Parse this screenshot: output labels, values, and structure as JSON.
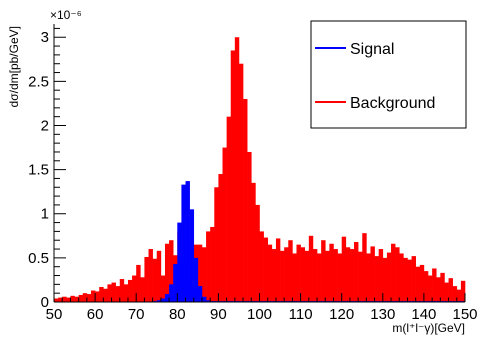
{
  "chart_data": {
    "type": "bar",
    "xlabel": "m(l⁺l⁻γ)[GeV]",
    "ylabel": "dσ/dm[pb/GeV]",
    "y_exponent_label": "×10⁻⁶",
    "xlim": [
      50,
      150
    ],
    "ylim": [
      0,
      3.15
    ],
    "x_ticks": [
      50,
      60,
      70,
      80,
      90,
      100,
      110,
      120,
      130,
      140,
      150
    ],
    "x_tick_labels": [
      "50",
      "60",
      "70",
      "80",
      "90",
      "100",
      "110",
      "120",
      "130",
      "140",
      "150"
    ],
    "y_ticks": [
      0,
      0.5,
      1,
      1.5,
      2,
      2.5,
      3
    ],
    "y_tick_labels": [
      "0",
      "0.5",
      "1",
      "1.5",
      "2",
      "2.5",
      "3"
    ],
    "grid": false,
    "legend_position": "top-right",
    "bin_width": 1,
    "bin_start": 50,
    "series": [
      {
        "name": "Signal",
        "color": "#0000ff",
        "values": [
          0,
          0,
          0,
          0,
          0,
          0,
          0,
          0,
          0,
          0,
          0,
          0,
          0,
          0,
          0,
          0,
          0,
          0,
          0,
          0,
          0,
          0,
          0,
          0,
          0.01,
          0.02,
          0.04,
          0.09,
          0.2,
          0.43,
          0.9,
          1.33,
          1.37,
          1.05,
          0.5,
          0.18,
          0.06,
          0.02,
          0.01,
          0.01,
          0.01,
          0.01,
          0.01,
          0.01,
          0.01,
          0.01,
          0.01,
          0.01,
          0.01,
          0.01,
          0.01,
          0.01,
          0.01,
          0.01,
          0.01,
          0.01,
          0.01,
          0.01,
          0.01,
          0.01,
          0.01,
          0.01,
          0.01,
          0.01,
          0.01,
          0.01,
          0.01,
          0.01,
          0.01,
          0.01,
          0.01,
          0.01,
          0.01,
          0.01,
          0.01,
          0.01,
          0.01,
          0.01,
          0.01,
          0.01,
          0.01,
          0.01,
          0.01,
          0.01,
          0.01,
          0.01,
          0.01,
          0.01,
          0.01,
          0.01,
          0.01,
          0.01,
          0.01,
          0.01,
          0.01,
          0.01,
          0.01,
          0.01,
          0.01,
          0.01
        ]
      },
      {
        "name": "Background",
        "color": "#ff0000",
        "values": [
          0.04,
          0.05,
          0.06,
          0.05,
          0.07,
          0.06,
          0.08,
          0.1,
          0.09,
          0.13,
          0.12,
          0.17,
          0.15,
          0.2,
          0.22,
          0.18,
          0.26,
          0.2,
          0.25,
          0.3,
          0.42,
          0.28,
          0.51,
          0.6,
          0.49,
          0.58,
          0.3,
          0.66,
          0.7,
          0.53,
          0.8,
          0.4,
          0.25,
          0.7,
          0.65,
          0.65,
          0.62,
          0.8,
          0.85,
          1.3,
          1.45,
          1.75,
          2.1,
          2.85,
          3.0,
          2.7,
          2.3,
          1.7,
          1.35,
          1.1,
          0.8,
          0.73,
          0.65,
          0.6,
          0.72,
          0.58,
          0.62,
          0.7,
          0.55,
          0.65,
          0.62,
          0.58,
          0.75,
          0.6,
          0.55,
          0.7,
          0.58,
          0.66,
          0.6,
          0.55,
          0.74,
          0.62,
          0.6,
          0.68,
          0.57,
          0.78,
          0.55,
          0.63,
          0.52,
          0.6,
          0.5,
          0.56,
          0.66,
          0.62,
          0.55,
          0.5,
          0.48,
          0.52,
          0.4,
          0.42,
          0.35,
          0.3,
          0.38,
          0.28,
          0.33,
          0.22,
          0.27,
          0.18,
          0.14,
          0.24
        ]
      }
    ]
  }
}
